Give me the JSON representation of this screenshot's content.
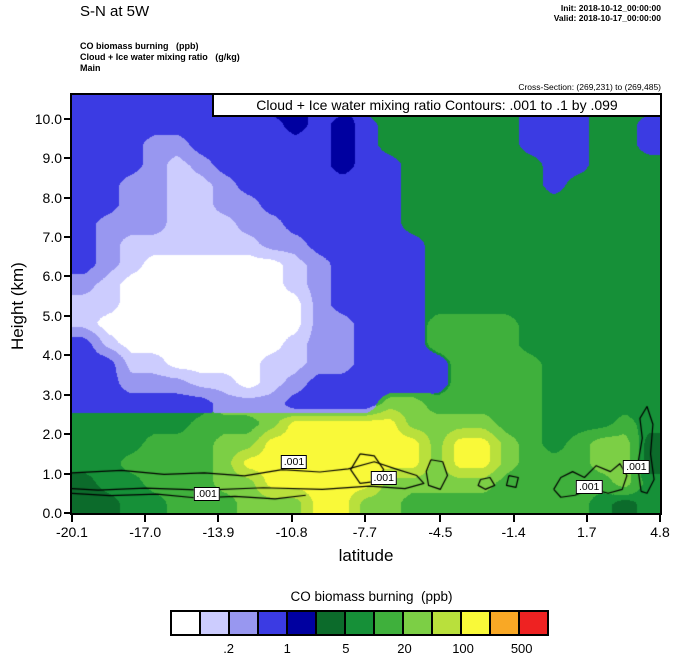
{
  "header": {
    "title": "S-N at 5W",
    "init": "Init: 2018-10-12_00:00:00",
    "valid": "Valid: 2018-10-17_00:00:00",
    "field1": "CO biomass burning   (ppb)",
    "field2": "Cloud + Ice water mixing ratio   (g/kg)",
    "grid_label": "Main",
    "cross_section": "Cross-Section: (269,231) to (269,485)"
  },
  "chart_data": {
    "type": "heatmap",
    "title": "Cloud + Ice water mixing ratio Contours: .001 to .1 by .099",
    "xlabel": "latitude",
    "ylabel": "Height (km)",
    "fill_field": "CO biomass burning (ppb)",
    "contour_field": "Cloud + Ice water mixing ratio (g/kg)",
    "contour_levels_text": ".001 to .1 by .099",
    "xlim": [
      -20.1,
      4.8
    ],
    "ylim": [
      0,
      10.6
    ],
    "x_ticks": [
      "-20.1",
      "-17.0",
      "-13.9",
      "-10.8",
      "-7.7",
      "-4.5",
      "-1.4",
      "1.7",
      "4.8"
    ],
    "y_ticks": [
      "0.0",
      "1.0",
      "2.0",
      "3.0",
      "4.0",
      "5.0",
      "6.0",
      "7.0",
      "8.0",
      "9.0",
      "10.0"
    ],
    "levels_ppb": [
      0.1,
      0.2,
      0.5,
      1,
      2,
      5,
      10,
      20,
      50,
      100,
      200,
      500
    ],
    "palette": [
      "#ffffff",
      "#ccccfe",
      "#9897f0",
      "#3b3be3",
      "#0000a0",
      "#0c6b2b",
      "#169038",
      "#3fb03c",
      "#7ccf45",
      "#b9e03c",
      "#f9f939",
      "#f9a825",
      "#ee2222"
    ],
    "grid_note": "palette indices on a 25 (lat -20.1..4.8) x 21 (height 10.6..0 km, top to bottom) grid",
    "grid": [
      [
        3,
        3,
        3,
        3,
        3,
        3,
        3,
        3,
        4,
        4,
        3,
        3,
        6,
        6,
        6,
        6,
        6,
        6,
        6,
        3,
        3,
        3,
        6,
        6,
        6
      ],
      [
        3,
        3,
        3,
        3,
        3,
        3,
        3,
        3,
        3,
        4,
        3,
        4,
        3,
        6,
        6,
        6,
        6,
        6,
        6,
        3,
        3,
        3,
        6,
        6,
        3
      ],
      [
        3,
        3,
        3,
        2,
        2,
        3,
        3,
        3,
        3,
        3,
        3,
        4,
        3,
        6,
        6,
        6,
        6,
        6,
        6,
        3,
        3,
        3,
        6,
        6,
        3
      ],
      [
        3,
        3,
        3,
        2,
        1,
        2,
        3,
        3,
        3,
        3,
        3,
        4,
        3,
        3,
        6,
        6,
        6,
        6,
        6,
        6,
        3,
        3,
        6,
        6,
        6
      ],
      [
        3,
        3,
        2,
        2,
        1,
        1,
        2,
        3,
        3,
        3,
        3,
        3,
        3,
        3,
        6,
        6,
        6,
        6,
        6,
        6,
        3,
        6,
        6,
        6,
        6
      ],
      [
        3,
        3,
        2,
        2,
        1,
        1,
        2,
        2,
        3,
        3,
        3,
        3,
        3,
        3,
        6,
        6,
        6,
        6,
        6,
        6,
        6,
        6,
        6,
        6,
        6
      ],
      [
        3,
        2,
        2,
        2,
        1,
        1,
        1,
        2,
        2,
        3,
        3,
        3,
        3,
        3,
        6,
        6,
        6,
        6,
        6,
        6,
        6,
        6,
        6,
        6,
        6
      ],
      [
        3,
        2,
        1,
        1,
        1,
        1,
        1,
        1,
        2,
        2,
        3,
        3,
        3,
        3,
        3,
        6,
        6,
        6,
        6,
        6,
        6,
        6,
        6,
        6,
        6
      ],
      [
        3,
        2,
        1,
        0,
        0,
        0,
        0,
        0,
        0,
        1,
        2,
        3,
        3,
        3,
        3,
        6,
        6,
        6,
        6,
        6,
        6,
        6,
        6,
        6,
        6
      ],
      [
        2,
        1,
        0,
        0,
        0,
        0,
        0,
        0,
        0,
        1,
        2,
        3,
        3,
        3,
        3,
        6,
        6,
        6,
        6,
        6,
        6,
        6,
        6,
        6,
        6
      ],
      [
        1,
        1,
        0,
        0,
        0,
        0,
        0,
        0,
        0,
        0,
        2,
        3,
        3,
        3,
        3,
        6,
        6,
        6,
        6,
        6,
        6,
        6,
        6,
        6,
        6
      ],
      [
        1,
        0,
        0,
        0,
        0,
        0,
        0,
        0,
        0,
        0,
        2,
        2,
        3,
        3,
        3,
        7,
        7,
        7,
        7,
        6,
        6,
        6,
        6,
        6,
        6
      ],
      [
        3,
        1,
        0,
        0,
        0,
        0,
        0,
        0,
        0,
        1,
        2,
        2,
        3,
        3,
        3,
        7,
        7,
        7,
        7,
        6,
        6,
        6,
        6,
        6,
        6
      ],
      [
        3,
        3,
        1,
        1,
        0,
        0,
        0,
        0,
        1,
        1,
        2,
        2,
        3,
        3,
        3,
        3,
        7,
        7,
        7,
        7,
        6,
        6,
        6,
        6,
        6
      ],
      [
        3,
        3,
        2,
        2,
        2,
        1,
        1,
        0,
        1,
        2,
        3,
        3,
        3,
        3,
        3,
        3,
        7,
        7,
        7,
        7,
        6,
        6,
        6,
        6,
        6
      ],
      [
        3,
        3,
        3,
        3,
        3,
        3,
        2,
        2,
        2,
        3,
        3,
        3,
        3,
        8,
        8,
        7,
        7,
        7,
        7,
        7,
        6,
        6,
        6,
        6,
        6
      ],
      [
        6,
        6,
        6,
        6,
        6,
        7,
        7,
        7,
        8,
        10,
        10,
        10,
        10,
        10,
        8,
        8,
        8,
        8,
        7,
        7,
        6,
        6,
        6,
        7,
        6
      ],
      [
        6,
        6,
        6,
        7,
        7,
        7,
        8,
        8,
        10,
        10,
        10,
        10,
        10,
        10,
        10,
        8,
        10,
        10,
        8,
        7,
        6,
        7,
        8,
        8,
        5
      ],
      [
        6,
        6,
        7,
        7,
        7,
        7,
        8,
        10,
        10,
        10,
        10,
        10,
        10,
        10,
        10,
        8,
        10,
        10,
        8,
        7,
        7,
        7,
        8,
        8,
        5
      ],
      [
        5,
        6,
        6,
        7,
        7,
        7,
        8,
        8,
        10,
        10,
        10,
        10,
        10,
        8,
        8,
        8,
        8,
        8,
        7,
        7,
        7,
        7,
        7,
        8,
        6
      ],
      [
        5,
        5,
        6,
        6,
        7,
        7,
        7,
        8,
        8,
        8,
        10,
        10,
        8,
        8,
        7,
        7,
        7,
        7,
        7,
        7,
        7,
        7,
        6,
        5,
        6
      ]
    ],
    "contours": [
      {
        "points": [
          [
            -20.1,
            1.02
          ],
          [
            -18,
            1.08
          ],
          [
            -16.2,
            0.98
          ],
          [
            -14.5,
            1.02
          ],
          [
            -12.8,
            0.94
          ],
          [
            -11.2,
            1.1
          ],
          [
            -9.6,
            1.04
          ],
          [
            -8.4,
            1.12
          ],
          [
            -7.3,
            1.3
          ],
          [
            -6.4,
            1.12
          ],
          [
            -5.5,
            0.95
          ],
          [
            -5.2,
            0.75
          ],
          [
            -6.0,
            0.62
          ],
          [
            -7.5,
            0.68
          ],
          [
            -9.5,
            0.6
          ],
          [
            -12,
            0.64
          ],
          [
            -14.5,
            0.58
          ],
          [
            -17,
            0.63
          ],
          [
            -19,
            0.58
          ],
          [
            -20.1,
            0.62
          ]
        ]
      },
      {
        "points": [
          [
            -20.1,
            0.5
          ],
          [
            -18.5,
            0.44
          ],
          [
            -16.5,
            0.48
          ],
          [
            -14.8,
            0.38
          ],
          [
            -13.2,
            0.42
          ],
          [
            -11.5,
            0.36
          ],
          [
            -10.2,
            0.45
          ]
        ]
      },
      {
        "points": [
          [
            -7.9,
            1.5
          ],
          [
            -7.3,
            1.45
          ],
          [
            -6.9,
            1.1
          ],
          [
            -7.2,
            0.8
          ],
          [
            -7.9,
            0.75
          ],
          [
            -8.3,
            1.1
          ],
          [
            -7.9,
            1.5
          ]
        ]
      },
      {
        "points": [
          [
            -4.9,
            1.35
          ],
          [
            -4.4,
            1.3
          ],
          [
            -4.2,
            0.95
          ],
          [
            -4.5,
            0.6
          ],
          [
            -5.0,
            0.7
          ],
          [
            -5.1,
            1.05
          ],
          [
            -4.9,
            1.35
          ]
        ]
      },
      {
        "points": [
          [
            -2.8,
            0.85
          ],
          [
            -2.4,
            0.9
          ],
          [
            -2.2,
            0.7
          ],
          [
            -2.6,
            0.6
          ],
          [
            -2.9,
            0.7
          ],
          [
            -2.8,
            0.85
          ]
        ]
      },
      {
        "points": [
          [
            -1.6,
            0.95
          ],
          [
            -1.2,
            0.9
          ],
          [
            -1.3,
            0.65
          ],
          [
            -1.7,
            0.7
          ],
          [
            -1.6,
            0.95
          ]
        ]
      },
      {
        "points": [
          [
            0.3,
            0.6
          ],
          [
            0.6,
            0.9
          ],
          [
            1.1,
            1.05
          ],
          [
            1.6,
            0.9
          ],
          [
            2.1,
            1.2
          ],
          [
            2.7,
            1.05
          ],
          [
            3.1,
            1.25
          ],
          [
            3.4,
            0.95
          ],
          [
            3.2,
            0.6
          ],
          [
            2.6,
            0.5
          ],
          [
            1.9,
            0.62
          ],
          [
            1.2,
            0.45
          ],
          [
            0.6,
            0.4
          ],
          [
            0.3,
            0.6
          ]
        ]
      },
      {
        "points": [
          [
            4.0,
            0.55
          ],
          [
            3.85,
            1.2
          ],
          [
            4.05,
            1.9
          ],
          [
            3.95,
            2.4
          ],
          [
            4.25,
            2.7
          ],
          [
            4.5,
            2.25
          ],
          [
            4.4,
            1.5
          ],
          [
            4.55,
            0.85
          ],
          [
            4.25,
            0.5
          ],
          [
            4.0,
            0.55
          ]
        ]
      }
    ],
    "contour_labels": [
      {
        "x": -14.4,
        "y": 0.48,
        "text": ".001"
      },
      {
        "x": -10.7,
        "y": 1.29,
        "text": ".001"
      },
      {
        "x": -6.9,
        "y": 0.89,
        "text": ".001"
      },
      {
        "x": 1.8,
        "y": 0.66,
        "text": ".001"
      },
      {
        "x": 3.8,
        "y": 1.17,
        "text": ".001"
      }
    ]
  },
  "legend": {
    "title": "CO biomass burning  (ppb)",
    "labels": [
      ".2",
      "1",
      "5",
      "20",
      "100",
      "500"
    ],
    "label_boundaries": [
      2,
      4,
      6,
      8,
      10,
      12
    ],
    "num_cells": 13
  }
}
